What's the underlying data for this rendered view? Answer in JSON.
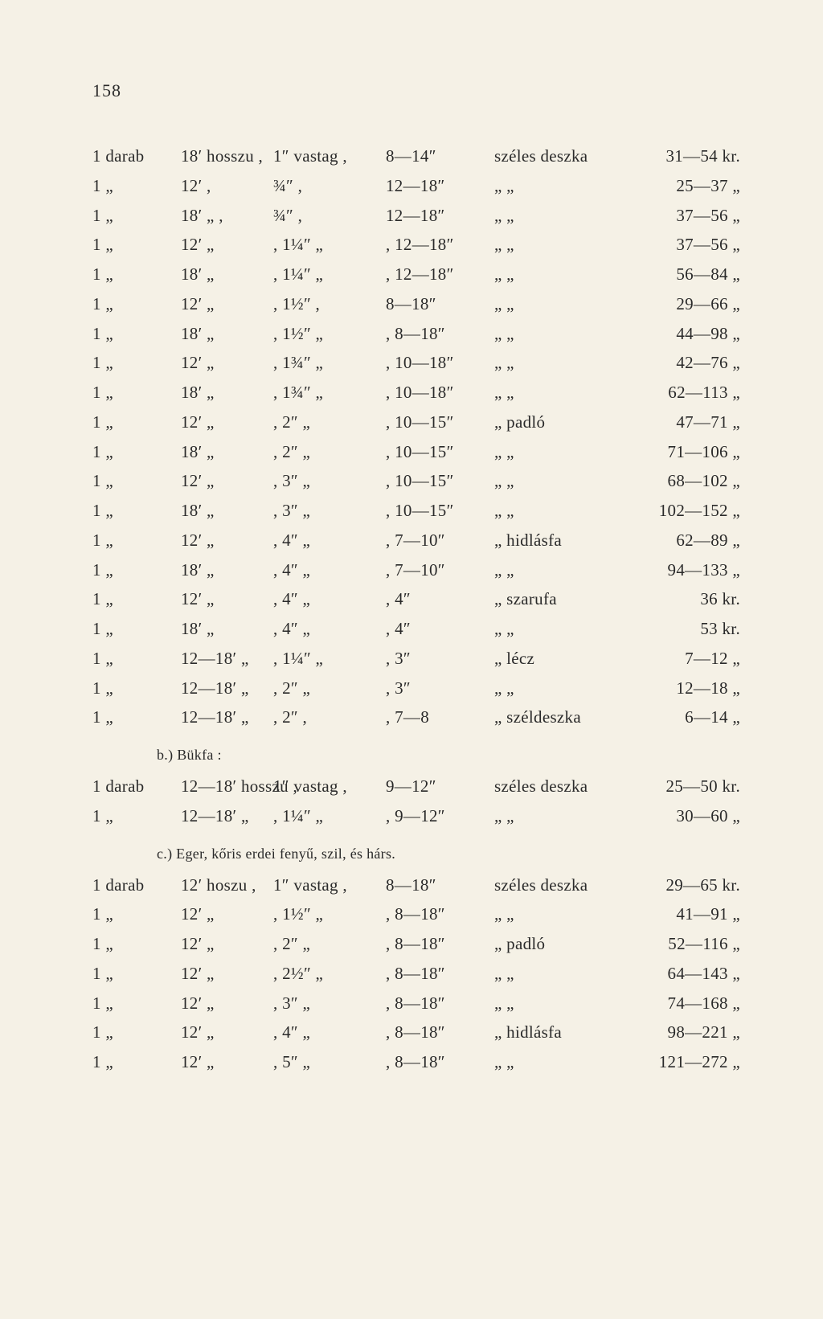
{
  "page_number": "158",
  "section_a": {
    "rows": [
      {
        "qty": "1 darab",
        "len": "18′ hosszu ,",
        "thk": "1″ vastag ,",
        "wid": "8—14″",
        "typ": "széles deszka",
        "prc": "31—54 kr."
      },
      {
        "qty": "1 „",
        "len": "12′ ,",
        "thk": "¾″ ,",
        "wid": "12—18″",
        "typ": "„ „",
        "prc": "25—37 „"
      },
      {
        "qty": "1 „",
        "len": "18′ „ ,",
        "thk": "¾″ ,",
        "wid": "12—18″",
        "typ": "„ „",
        "prc": "37—56 „"
      },
      {
        "qty": "1 „",
        "len": "12′ „",
        "thk": ", 1¼″ „",
        "wid": ", 12—18″",
        "typ": "„ „",
        "prc": "37—56 „"
      },
      {
        "qty": "1 „",
        "len": "18′ „",
        "thk": ", 1¼″ „",
        "wid": ", 12—18″",
        "typ": "„ „",
        "prc": "56—84 „"
      },
      {
        "qty": "1 „",
        "len": "12′ „",
        "thk": ", 1½″ ,",
        "wid": "8—18″",
        "typ": "„ „",
        "prc": "29—66 „"
      },
      {
        "qty": "1 „",
        "len": "18′ „",
        "thk": ", 1½″ „",
        "wid": ", 8—18″",
        "typ": "„ „",
        "prc": "44—98 „"
      },
      {
        "qty": "1 „",
        "len": "12′ „",
        "thk": ", 1¾″ „",
        "wid": ", 10—18″",
        "typ": "„ „",
        "prc": "42—76 „"
      },
      {
        "qty": "1 „",
        "len": "18′ „",
        "thk": ", 1¾″ „",
        "wid": ", 10—18″",
        "typ": "„ „",
        "prc": "62—113 „"
      },
      {
        "qty": "1 „",
        "len": "12′ „",
        "thk": ", 2″ „",
        "wid": ", 10—15″",
        "typ": "„ padló",
        "prc": "47—71 „"
      },
      {
        "qty": "1 „",
        "len": "18′ „",
        "thk": ", 2″ „",
        "wid": ", 10—15″",
        "typ": "„ „",
        "prc": "71—106 „"
      },
      {
        "qty": "1 „",
        "len": "12′ „",
        "thk": ", 3″ „",
        "wid": ", 10—15″",
        "typ": "„ „",
        "prc": "68—102 „"
      },
      {
        "qty": "1 „",
        "len": "18′ „",
        "thk": ", 3″ „",
        "wid": ", 10—15″",
        "typ": "„ „",
        "prc": "102—152 „"
      },
      {
        "qty": "1 „",
        "len": "12′ „",
        "thk": ", 4″ „",
        "wid": ", 7—10″",
        "typ": "„ hidlásfa",
        "prc": "62—89 „"
      },
      {
        "qty": "1 „",
        "len": "18′ „",
        "thk": ", 4″ „",
        "wid": ", 7—10″",
        "typ": "„ „",
        "prc": "94—133 „"
      },
      {
        "qty": "1 „",
        "len": "12′ „",
        "thk": ", 4″ „",
        "wid": ", 4″",
        "typ": "„ szarufa",
        "prc": "36 kr."
      },
      {
        "qty": "1 „",
        "len": "18′ „",
        "thk": ", 4″ „",
        "wid": ", 4″",
        "typ": "„ „",
        "prc": "53 kr."
      },
      {
        "qty": "1 „",
        "len": "12—18′ „",
        "thk": ", 1¼″ „",
        "wid": ", 3″",
        "typ": "„ lécz",
        "prc": "7—12 „"
      },
      {
        "qty": "1 „",
        "len": "12—18′ „",
        "thk": ", 2″ „",
        "wid": ", 3″",
        "typ": "„ „",
        "prc": "12—18 „"
      },
      {
        "qty": "1 „",
        "len": "12—18′ „",
        "thk": ", 2″ ,",
        "wid": ", 7—8",
        "typ": "„ széldeszka",
        "prc": "6—14 „"
      }
    ]
  },
  "section_b": {
    "heading": "b.) Bükfa :",
    "rows": [
      {
        "qty": "1 darab",
        "len": "12—18′ hosszu ,",
        "thk": "1″ vastag ,",
        "wid": "9—12″",
        "typ": "széles deszka",
        "prc": "25—50 kr."
      },
      {
        "qty": "1 „",
        "len": "12—18′ „",
        "thk": ", 1¼″ „",
        "wid": ", 9—12″",
        "typ": "„ „",
        "prc": "30—60 „"
      }
    ]
  },
  "section_c": {
    "heading": "c.) Eger, kőris erdei fenyű, szil, és hárs.",
    "rows": [
      {
        "qty": "1 darab",
        "len": "12′ hoszu ,",
        "thk": "1″ vastag ,",
        "wid": "8—18″",
        "typ": "széles deszka",
        "prc": "29—65 kr."
      },
      {
        "qty": "1 „",
        "len": "12′ „",
        "thk": ", 1½″ „",
        "wid": ", 8—18″",
        "typ": "„ „",
        "prc": "41—91 „"
      },
      {
        "qty": "1 „",
        "len": "12′ „",
        "thk": ", 2″ „",
        "wid": ", 8—18″",
        "typ": "„ padló",
        "prc": "52—116 „"
      },
      {
        "qty": "1 „",
        "len": "12′ „",
        "thk": ", 2½″ „",
        "wid": ", 8—18″",
        "typ": "„ „",
        "prc": "64—143 „"
      },
      {
        "qty": "1 „",
        "len": "12′ „",
        "thk": ", 3″ „",
        "wid": ", 8—18″",
        "typ": "„ „",
        "prc": "74—168 „"
      },
      {
        "qty": "1 „",
        "len": "12′ „",
        "thk": ", 4″ „",
        "wid": ", 8—18″",
        "typ": "„ hidlásfa",
        "prc": "98—221 „"
      },
      {
        "qty": "1 „",
        "len": "12′ „",
        "thk": ", 5″ „",
        "wid": ", 8—18″",
        "typ": "„ „",
        "prc": "121—272 „"
      }
    ]
  }
}
